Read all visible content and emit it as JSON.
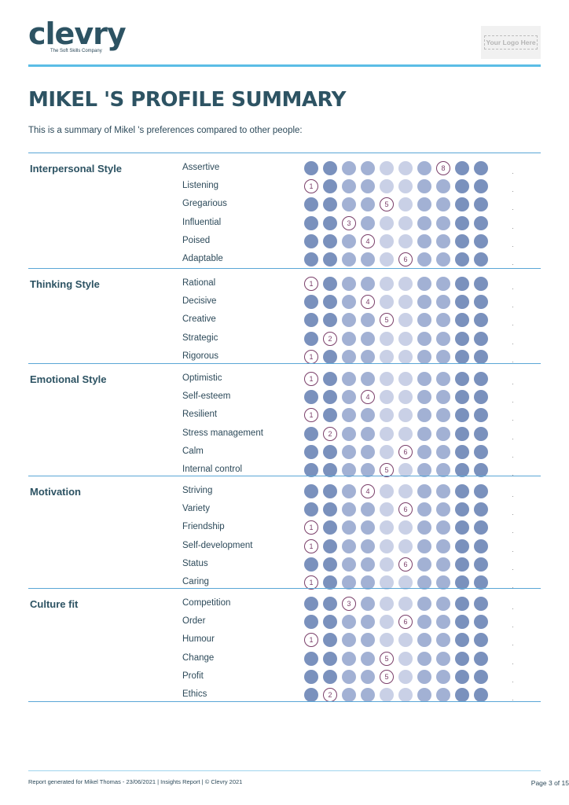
{
  "brand": {
    "name": "clevry",
    "tagline": "The Soft Skills Company"
  },
  "client_logo": {
    "label": "Your Logo Here"
  },
  "title": "MIKEL 'S PROFILE SUMMARY",
  "intro": "This is a summary of Mikel 's preferences compared to other people:",
  "colors": {
    "scale": [
      "#7a91bd",
      "#7a91bd",
      "#a2b1d4",
      "#a2b1d4",
      "#c9d0e6",
      "#c9d0e6",
      "#a2b1d4",
      "#a2b1d4",
      "#7a91bd",
      "#7a91bd"
    ],
    "marker": "#7b3f6a",
    "rule": "#5aa6d6",
    "accent": "#5bbde6"
  },
  "scale_points": 10,
  "sections": [
    {
      "title": "Interpersonal Style",
      "traits": [
        {
          "label": "Assertive",
          "score": 8
        },
        {
          "label": "Listening",
          "score": 1
        },
        {
          "label": "Gregarious",
          "score": 5
        },
        {
          "label": "Influential",
          "score": 3
        },
        {
          "label": "Poised",
          "score": 4
        },
        {
          "label": "Adaptable",
          "score": 6
        }
      ]
    },
    {
      "title": "Thinking Style",
      "traits": [
        {
          "label": "Rational",
          "score": 1
        },
        {
          "label": "Decisive",
          "score": 4
        },
        {
          "label": "Creative",
          "score": 5
        },
        {
          "label": "Strategic",
          "score": 2
        },
        {
          "label": "Rigorous",
          "score": 1
        }
      ]
    },
    {
      "title": "Emotional Style",
      "traits": [
        {
          "label": "Optimistic",
          "score": 1
        },
        {
          "label": "Self-esteem",
          "score": 4
        },
        {
          "label": "Resilient",
          "score": 1
        },
        {
          "label": "Stress management",
          "score": 2
        },
        {
          "label": "Calm",
          "score": 6
        },
        {
          "label": "Internal control",
          "score": 5
        }
      ]
    },
    {
      "title": "Motivation",
      "traits": [
        {
          "label": "Striving",
          "score": 4
        },
        {
          "label": "Variety",
          "score": 6
        },
        {
          "label": "Friendship",
          "score": 1
        },
        {
          "label": "Self-development",
          "score": 1
        },
        {
          "label": "Status",
          "score": 6
        },
        {
          "label": "Caring",
          "score": 1
        }
      ]
    },
    {
      "title": "Culture fit",
      "traits": [
        {
          "label": "Competition",
          "score": 3
        },
        {
          "label": "Order",
          "score": 6
        },
        {
          "label": "Humour",
          "score": 1
        },
        {
          "label": "Change",
          "score": 5
        },
        {
          "label": "Profit",
          "score": 5
        },
        {
          "label": "Ethics",
          "score": 2
        }
      ]
    }
  ],
  "footer": {
    "left": "Report generated for Mikel Thomas - 23/06/2021 | Insights Report | © Clevry 2021",
    "page": "Page 3 of 15"
  }
}
